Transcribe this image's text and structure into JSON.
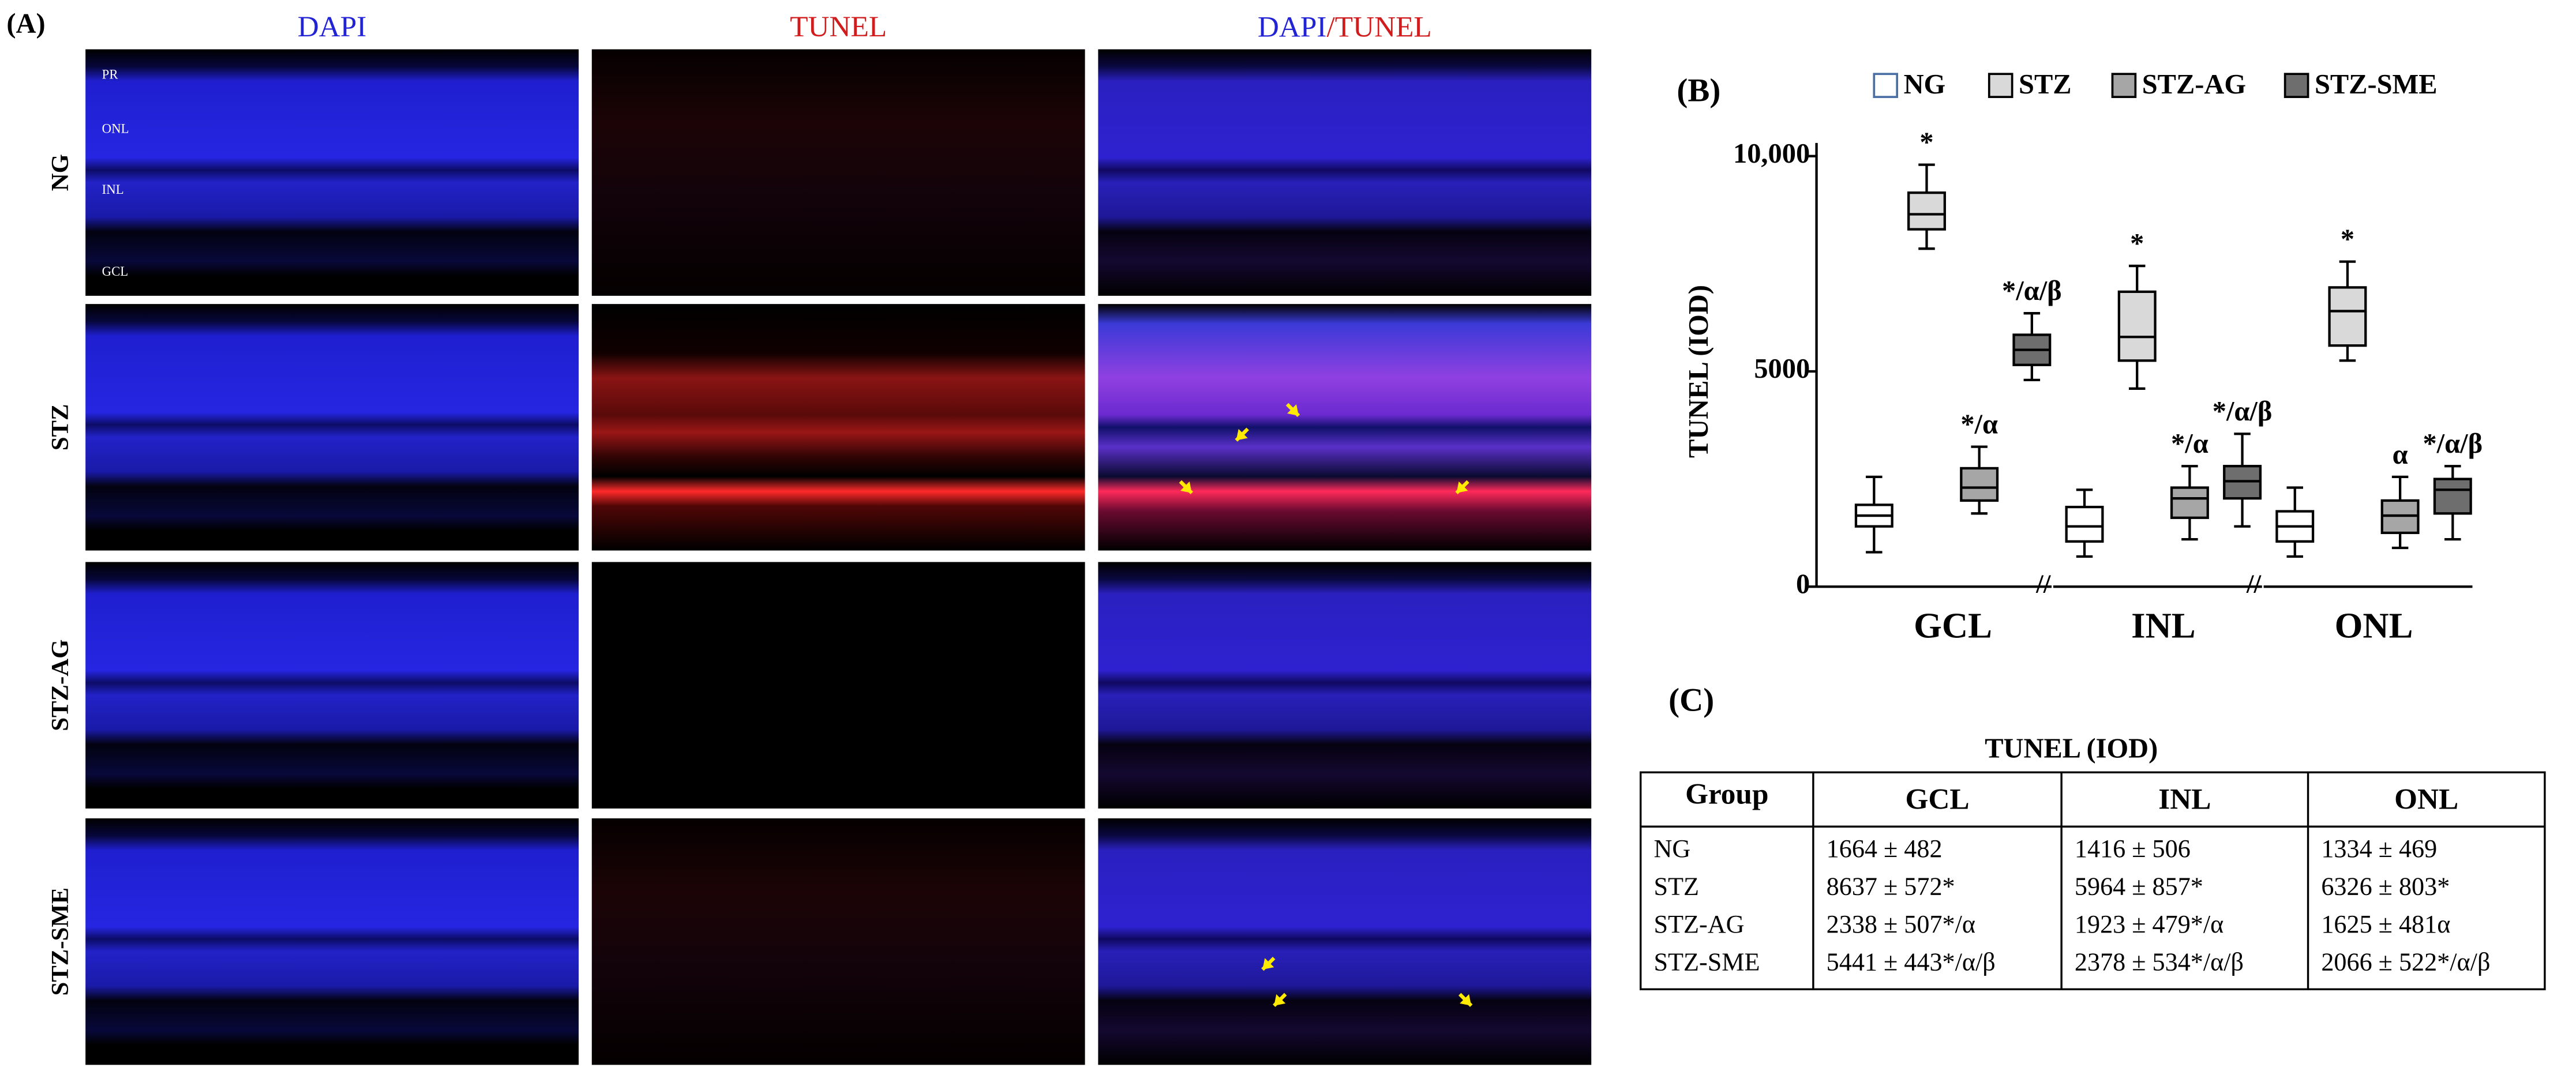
{
  "panel_a": {
    "label": "(A)",
    "columns": [
      "DAPI",
      "TUNEL"
    ],
    "merge_header": [
      "DAPI",
      "/TUNEL"
    ],
    "rows": [
      "NG",
      "STZ",
      "STZ-AG",
      "STZ-SME"
    ],
    "layers": [
      "PR",
      "ONL",
      "INL",
      "GCL"
    ]
  },
  "chart_data": {
    "type": "box",
    "label": "(B)",
    "ylabel": "TUNEL  (IOD)",
    "categories": [
      "GCL",
      "INL",
      "ONL"
    ],
    "ylim": [
      0,
      10000
    ],
    "yticks": [
      0,
      5000,
      {
        "value": 10000,
        "label": "10,000"
      }
    ],
    "grid": false,
    "series": [
      {
        "name": "NG",
        "color": "#ffffff",
        "values": [
          {
            "min": 800,
            "q1": 1400,
            "median": 1650,
            "q3": 1900,
            "max": 2550
          },
          {
            "min": 700,
            "q1": 1050,
            "median": 1400,
            "q3": 1850,
            "max": 2250
          },
          {
            "min": 700,
            "q1": 1050,
            "median": 1400,
            "q3": 1750,
            "max": 2300
          }
        ],
        "annotations": [
          null,
          null,
          null
        ]
      },
      {
        "name": "STZ",
        "color": "#d9d9d9",
        "values": [
          {
            "min": 7850,
            "q1": 8300,
            "median": 8650,
            "q3": 9150,
            "max": 9800
          },
          {
            "min": 4600,
            "q1": 5250,
            "median": 5800,
            "q3": 6850,
            "max": 7450
          },
          {
            "min": 5250,
            "q1": 5600,
            "median": 6400,
            "q3": 6950,
            "max": 7550
          }
        ],
        "annotations": [
          "*",
          "*",
          "*"
        ]
      },
      {
        "name": "STZ-AG",
        "color": "#a6a6a6",
        "values": [
          {
            "min": 1700,
            "q1": 2000,
            "median": 2300,
            "q3": 2750,
            "max": 3250
          },
          {
            "min": 1100,
            "q1": 1600,
            "median": 2050,
            "q3": 2300,
            "max": 2800
          },
          {
            "min": 900,
            "q1": 1250,
            "median": 1650,
            "q3": 2000,
            "max": 2550
          }
        ],
        "annotations": [
          "*/α",
          "*/α",
          "α"
        ]
      },
      {
        "name": "STZ-SME",
        "color": "#6e6e6e",
        "values": [
          {
            "min": 4800,
            "q1": 5150,
            "median": 5500,
            "q3": 5850,
            "max": 6350
          },
          {
            "min": 1400,
            "q1": 2050,
            "median": 2450,
            "q3": 2800,
            "max": 3550
          },
          {
            "min": 1100,
            "q1": 1700,
            "median": 2250,
            "q3": 2500,
            "max": 2800
          }
        ],
        "annotations": [
          "*/α/β",
          "*/α/β",
          "*/α/β"
        ]
      }
    ]
  },
  "panel_c": {
    "label": "(C)",
    "caption": "TUNEL (IOD)",
    "header": [
      "Group",
      "GCL",
      "INL",
      "ONL"
    ],
    "rows": [
      [
        "NG",
        "1664 ± 482",
        "1416 ± 506",
        "1334 ± 469"
      ],
      [
        "STZ",
        "8637 ± 572*",
        "5964 ± 857*",
        "6326 ± 803*"
      ],
      [
        "STZ-AG",
        "2338 ± 507*/α",
        "1923 ± 479*/α",
        "1625 ± 481α"
      ],
      [
        "STZ-SME",
        "5441 ± 443*/α/β",
        "2378 ± 534*/α/β",
        "2066 ± 522*/α/β"
      ]
    ]
  }
}
